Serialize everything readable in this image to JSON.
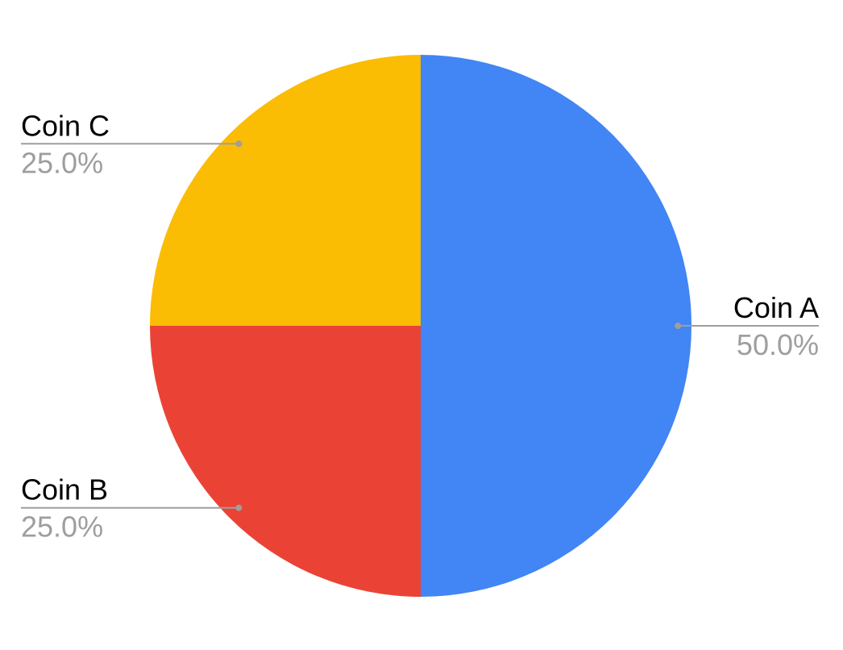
{
  "chart_data": {
    "type": "pie",
    "start_angle_deg": 0,
    "direction": "clockwise",
    "slices": [
      {
        "label": "Coin A",
        "value": 50.0,
        "percent_label": "50.0%",
        "color": "#4285F4"
      },
      {
        "label": "Coin B",
        "value": 25.0,
        "percent_label": "25.0%",
        "color": "#EA4335"
      },
      {
        "label": "Coin C",
        "value": 25.0,
        "percent_label": "25.0%",
        "color": "#FBBC04"
      }
    ],
    "legend": "none",
    "label_style": "outside-with-leader-lines"
  }
}
